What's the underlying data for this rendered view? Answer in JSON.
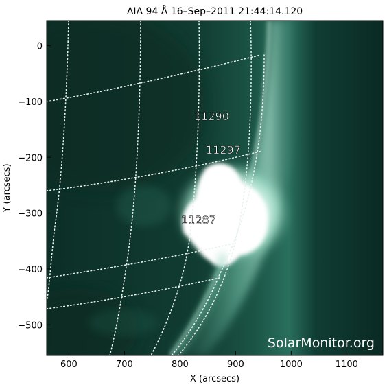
{
  "title": "AIA 94 Å 16–Sep–2011 21:44:14.120",
  "xlabel": "X (arcsecs)",
  "ylabel": "Y (arcsecs)",
  "x_ticks": [
    {
      "label": "600",
      "value": 600
    },
    {
      "label": "700",
      "value": 700
    },
    {
      "label": "800",
      "value": 800
    },
    {
      "label": "900",
      "value": 900
    },
    {
      "label": "1000",
      "value": 1000
    },
    {
      "label": "1100",
      "value": 1100
    }
  ],
  "y_ticks": [
    {
      "label": "0",
      "value": 0
    },
    {
      "label": "−100",
      "value": -100
    },
    {
      "label": "−200",
      "value": -200
    },
    {
      "label": "−300",
      "value": -300
    },
    {
      "label": "−400",
      "value": -400
    },
    {
      "label": "−500",
      "value": -500
    }
  ],
  "x_range": [
    560,
    1165
  ],
  "y_range": [
    -555,
    45
  ],
  "regions": [
    {
      "number": "11290",
      "x": 835,
      "y": -130
    },
    {
      "number": "11297",
      "x": 857,
      "y": -190
    },
    {
      "number": "11287",
      "x": 822,
      "y": -310
    }
  ],
  "watermark": "SolarMonitor.org",
  "colors": {
    "disk": "#0f3b30",
    "limb": "#8fd0bb",
    "flare": "#ffffff",
    "grid": "#e8f2ee",
    "frame": "#000000"
  }
}
